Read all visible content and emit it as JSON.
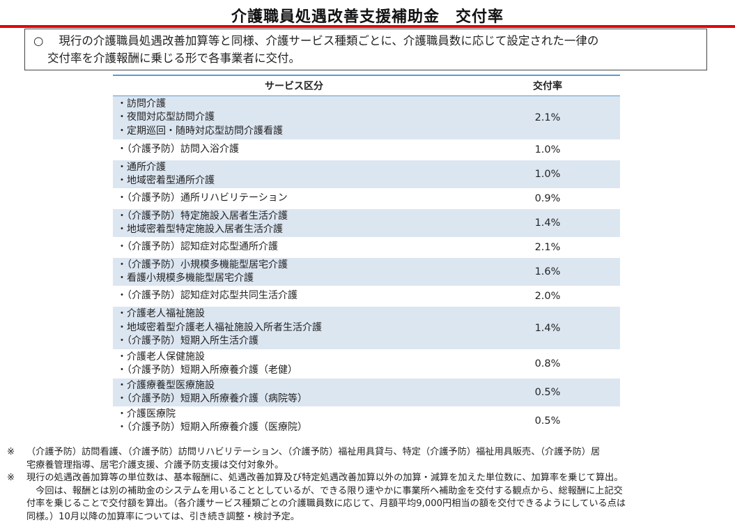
{
  "title": "介護職員処遇改善支援補助金　交付率",
  "summary": {
    "mark": "○",
    "line1": "現行の介護職員処遇改善加算等と同様、介護サービス種類ごとに、介護職員数に応じて設定された一律の",
    "line2": "交付率を介護報酬に乗じる形で各事業者に交付。"
  },
  "table": {
    "headers": [
      "サービス区分",
      "交付率"
    ],
    "rows": [
      {
        "lines": [
          "・訪問介護",
          "・夜間対応型訪問介護",
          "・定期巡回・随時対応型訪問介護看護"
        ],
        "rate": "2.1%"
      },
      {
        "lines": [
          "・（介護予防）訪問入浴介護"
        ],
        "rate": "1.0%"
      },
      {
        "lines": [
          "・通所介護",
          "・地域密着型通所介護"
        ],
        "rate": "1.0%"
      },
      {
        "lines": [
          "・（介護予防）通所リハビリテーション"
        ],
        "rate": "0.9%"
      },
      {
        "lines": [
          "・（介護予防）特定施設入居者生活介護",
          "・地域密着型特定施設入居者生活介護"
        ],
        "rate": "1.4%"
      },
      {
        "lines": [
          "・（介護予防）認知症対応型通所介護"
        ],
        "rate": "2.1%"
      },
      {
        "lines": [
          "・（介護予防）小規模多機能型居宅介護",
          "・看護小規模多機能型居宅介護"
        ],
        "rate": "1.6%"
      },
      {
        "lines": [
          "・（介護予防）認知症対応型共同生活介護"
        ],
        "rate": "2.0%"
      },
      {
        "lines": [
          "・介護老人福祉施設",
          "・地域密着型介護老人福祉施設入所者生活介護",
          "・（介護予防）短期入所生活介護"
        ],
        "rate": "1.4%"
      },
      {
        "lines": [
          "・介護老人保健施設",
          "・（介護予防）短期入所療養介護（老健）"
        ],
        "rate": "0.8%"
      },
      {
        "lines": [
          "・介護療養型医療施設",
          "・（介護予防）短期入所療養介護（病院等）"
        ],
        "rate": "0.5%"
      },
      {
        "lines": [
          "・介護医療院",
          "・（介護予防）短期入所療養介護（医療院）"
        ],
        "rate": "0.5%"
      }
    ]
  },
  "notes": [
    {
      "mark": "※",
      "lines": [
        "（介護予防）訪問看護、（介護予防）訪問リハビリテーション、（介護予防）福祉用具貸与、特定（介護予防）福祉用具販売、（介護予防）居",
        "宅療養管理指導、居宅介護支援、介護予防支援は交付対象外。"
      ]
    },
    {
      "mark": "※",
      "lines": [
        "現行の処遇改善加算等の単位数は、基本報酬に、処遇改善加算及び特定処遇改善加算以外の加算・減算を加えた単位数に、加算率を乗じて算出。",
        "　今回は、報酬とは別の補助金のシステムを用いることとしているが、できる限り速やかに事業所へ補助金を交付する観点から、総報酬に上記交",
        "付率を乗じることで交付額を算出。（各介護サービス種類ごとの介護職員数に応じて、月額平均9,000円相当の額を交付できるようにしている点は",
        "同様。）10月以降の加算率については、引き続き調整・検討予定。"
      ]
    }
  ],
  "colors": {
    "title_rule": "#e00000",
    "table_rule": "#5b9bd5",
    "row_shade": "#dce6f1"
  }
}
